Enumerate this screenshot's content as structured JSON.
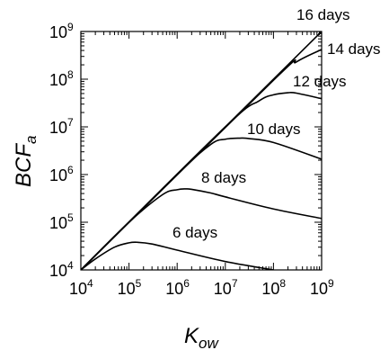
{
  "chart_data": {
    "type": "line",
    "xscale": "log",
    "yscale": "log",
    "xlim": [
      10000,
      1000000000
    ],
    "ylim": [
      10000,
      1000000000
    ],
    "grid": false,
    "xlabel": {
      "main": "K",
      "sub": "ow"
    },
    "ylabel": {
      "main": "BCF",
      "sub": "a"
    },
    "xticks": [
      {
        "base": "10",
        "exp": "4",
        "value": 10000
      },
      {
        "base": "10",
        "exp": "5",
        "value": 100000
      },
      {
        "base": "10",
        "exp": "6",
        "value": 1000000
      },
      {
        "base": "10",
        "exp": "7",
        "value": 10000000
      },
      {
        "base": "10",
        "exp": "8",
        "value": 100000000
      },
      {
        "base": "10",
        "exp": "9",
        "value": 1000000000
      }
    ],
    "yticks": [
      {
        "base": "10",
        "exp": "4",
        "value": 10000
      },
      {
        "base": "10",
        "exp": "5",
        "value": 100000
      },
      {
        "base": "10",
        "exp": "6",
        "value": 1000000
      },
      {
        "base": "10",
        "exp": "7",
        "value": 10000000
      },
      {
        "base": "10",
        "exp": "8",
        "value": 100000000
      },
      {
        "base": "10",
        "exp": "9",
        "value": 1000000000
      }
    ],
    "series": [
      {
        "name": "6 days",
        "x": [
          10000,
          20000,
          50000,
          100000,
          150000,
          300000,
          1000000,
          10000000,
          100000000
        ],
        "y": [
          10000,
          17000,
          30000,
          37000,
          38000,
          35000,
          26000,
          15000,
          10000
        ]
      },
      {
        "name": "8 days",
        "x": [
          10000,
          100000,
          500000,
          1000000,
          1500000,
          2000000,
          5000000,
          10000000,
          100000000,
          1000000000
        ],
        "y": [
          10000,
          100000,
          380000,
          480000,
          500000,
          490000,
          410000,
          340000,
          190000,
          120000
        ]
      },
      {
        "name": "10 days",
        "x": [
          10000,
          1000000,
          5000000,
          10000000,
          20000000,
          30000000,
          100000000,
          1000000000
        ],
        "y": [
          10000,
          1000000,
          4300000,
          5500000,
          5800000,
          5700000,
          4700000,
          2100000
        ]
      },
      {
        "name": "12 days",
        "x": [
          10000,
          10000000,
          50000000,
          100000000,
          200000000,
          300000000,
          1000000000
        ],
        "y": [
          10000,
          10000000,
          35000000,
          47000000,
          52000000,
          51000000,
          39000000
        ]
      },
      {
        "name": "14 days",
        "x": [
          10000,
          100000000,
          300000000,
          1000000000
        ],
        "y": [
          10000,
          95000000,
          230000000,
          420000000
        ]
      },
      {
        "name": "16 days",
        "x": [
          10000,
          1000000000
        ],
        "y": [
          10000,
          1000000000
        ]
      }
    ]
  }
}
